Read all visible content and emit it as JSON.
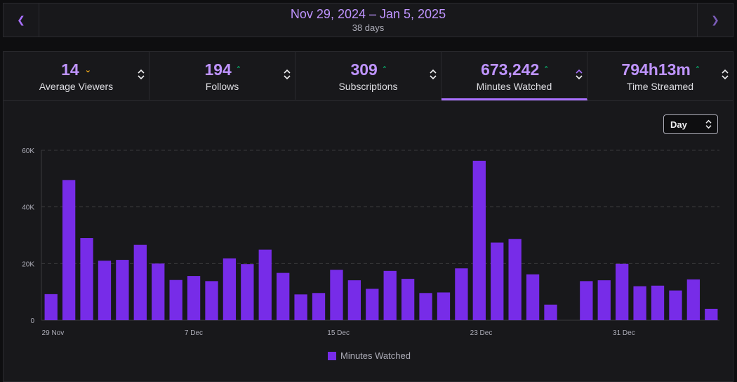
{
  "range": {
    "title": "Nov 29, 2024 – Jan 5, 2025",
    "subtitle": "38 days",
    "prev_icon": "chevron-left-icon",
    "next_icon": "chevron-right-icon"
  },
  "stats": [
    {
      "value": "14",
      "label": "Average Viewers",
      "trend": "down"
    },
    {
      "value": "194",
      "label": "Follows",
      "trend": "up"
    },
    {
      "value": "309",
      "label": "Subscriptions",
      "trend": "up"
    },
    {
      "value": "673,242",
      "label": "Minutes Watched",
      "trend": "up",
      "active": true
    },
    {
      "value": "794h13m",
      "label": "Time Streamed",
      "trend": "up"
    }
  ],
  "granularity": {
    "selected": "Day"
  },
  "colors": {
    "accent": "#a970ff",
    "bar": "#772ce8",
    "trend_up": "#00f593",
    "trend_down": "#ffb31a"
  },
  "chart_data": {
    "type": "bar",
    "series": [
      {
        "name": "Minutes Watched",
        "values": [
          9200,
          49500,
          29000,
          21000,
          21300,
          26600,
          20000,
          14200,
          15600,
          13800,
          21800,
          19800,
          24900,
          16700,
          9100,
          9600,
          17800,
          14100,
          11100,
          17400,
          14600,
          9600,
          9800,
          18300,
          56300,
          27400,
          28700,
          16200,
          5500,
          0,
          13800,
          14100,
          19900,
          12000,
          12200,
          10500,
          14400,
          4000
        ]
      }
    ],
    "x_tick_labels": [
      {
        "index": 0,
        "label": "29 Nov"
      },
      {
        "index": 8,
        "label": "7 Dec"
      },
      {
        "index": 16,
        "label": "15 Dec"
      },
      {
        "index": 24,
        "label": "23 Dec"
      },
      {
        "index": 32,
        "label": "31 Dec"
      }
    ],
    "y_ticks": [
      {
        "value": 0,
        "label": "0"
      },
      {
        "value": 20000,
        "label": "20K"
      },
      {
        "value": 40000,
        "label": "40K"
      },
      {
        "value": 60000,
        "label": "60K"
      }
    ],
    "ylim": [
      0,
      60000
    ],
    "grid": true,
    "legend": "bottom-center"
  }
}
